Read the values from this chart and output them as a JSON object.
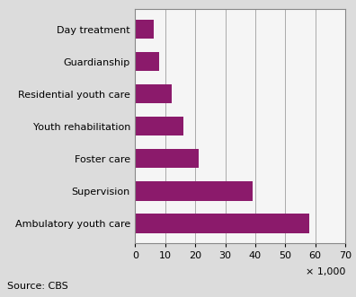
{
  "categories": [
    "Ambulatory youth care",
    "Supervision",
    "Foster care",
    "Youth rehabilitation",
    "Residential youth care",
    "Guardianship",
    "Day treatment"
  ],
  "values": [
    58,
    39,
    21,
    16,
    12,
    8,
    6
  ],
  "bar_color": "#8B1A6B",
  "figure_bg_color": "#DCDCDC",
  "axes_bg_color": "#F5F5F5",
  "xlabel": "× 1,000",
  "xlim": [
    0,
    70
  ],
  "xticks": [
    0,
    10,
    20,
    30,
    40,
    50,
    60,
    70
  ],
  "source_text": "Source: CBS",
  "label_fontsize": 8,
  "tick_fontsize": 8,
  "source_fontsize": 8,
  "xlabel_fontsize": 8,
  "grid_color": "#AAAAAA",
  "spine_color": "#888888",
  "bar_height": 0.6
}
